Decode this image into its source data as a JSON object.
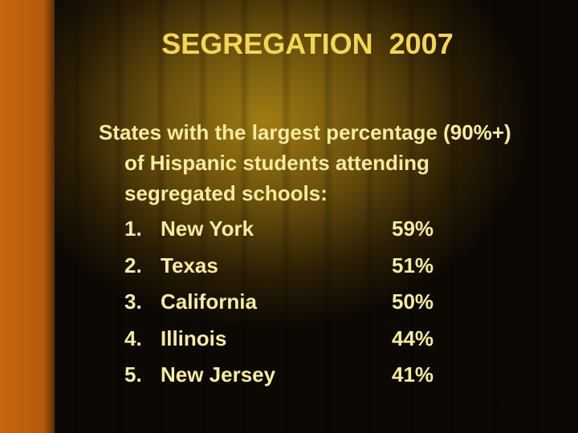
{
  "title": "SEGREGATION  2007",
  "intro": "States with the largest percentage (90%+) of Hispanic students attending segregated schools:",
  "items": [
    {
      "number": "1.",
      "state": "New York",
      "percent": "59%"
    },
    {
      "number": "2.",
      "state": "Texas",
      "percent": "51%"
    },
    {
      "number": "3.",
      "state": "California",
      "percent": "50%"
    },
    {
      "number": "4.",
      "state": "Illinois",
      "percent": "44%"
    },
    {
      "number": "5.",
      "state": "New Jersey",
      "percent": "41%"
    }
  ]
}
